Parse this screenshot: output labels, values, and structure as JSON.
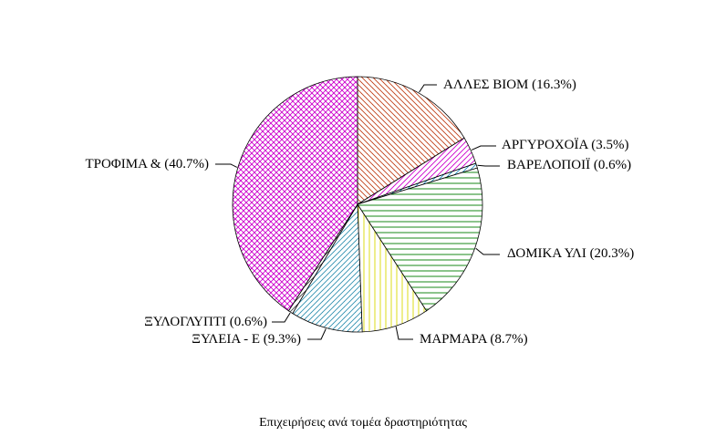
{
  "chart_data": {
    "type": "pie",
    "caption": "Επιχειρήσεις ανά τομέα δραστηριότητας",
    "slices": [
      {
        "label": "ΑΛΛΕΣ ΒΙΟΜ (16.3%)",
        "value": 16.3,
        "color": "#c0401a",
        "pattern": "diagonal-down"
      },
      {
        "label": "ΑΡΓΥΡΟΧΟΪΑ (3.5%)",
        "value": 3.5,
        "color": "#cc00cc",
        "pattern": "diagonal-up"
      },
      {
        "label": "ΒΑΡΕΛΟΠΟΙΪ (0.6%)",
        "value": 0.6,
        "color": "#2090c0",
        "pattern": "diagonal-up"
      },
      {
        "label": "ΔΟΜΙΚΑ ΥΛΙ (20.3%)",
        "value": 20.3,
        "color": "#007a00",
        "pattern": "horizontal"
      },
      {
        "label": "ΜΑΡΜΑΡΑ (8.7%)",
        "value": 8.7,
        "color": "#d8d800",
        "pattern": "vertical"
      },
      {
        "label": "ΞΥΛΕΙΑ - Ε (9.3%)",
        "value": 9.3,
        "color": "#3090b0",
        "pattern": "diagonal-up"
      },
      {
        "label": "ΞΥΛΟΓΛΥΠΤΙ (0.6%)",
        "value": 0.6,
        "color": "#404040",
        "pattern": "diagonal-up"
      },
      {
        "label": "ΤΡΟΦΙΜΑ &  (40.7%)",
        "value": 40.7,
        "color": "#cc00cc",
        "pattern": "crosshatch"
      }
    ]
  }
}
